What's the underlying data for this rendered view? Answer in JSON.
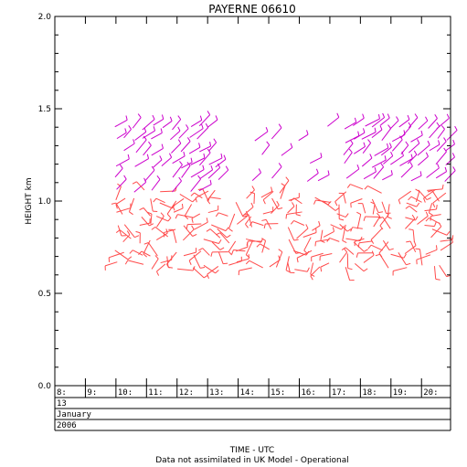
{
  "chart_data": {
    "type": "scatter",
    "title": "PAYERNE 06610",
    "ylabel": "HEIGHT km",
    "xlabel": "TIME - UTC",
    "subtitle": "Data not assimilated in UK Model - Operational",
    "ylim": [
      0.0,
      2.0
    ],
    "yticks": [
      "0.0",
      "0.5",
      "1.0",
      "1.5",
      "2.0"
    ],
    "xlim": [
      8.0,
      20.95
    ],
    "xtick_labels": [
      "8:",
      "9:",
      "10:",
      "11:",
      "12:",
      "13:",
      "14:",
      "15:",
      "16:",
      "17:",
      "18:",
      "19:",
      "20:"
    ],
    "date_rows": [
      "13",
      "January",
      "2006"
    ],
    "series_colors": {
      "lower": "#ff4a4a",
      "upper": "#cc00cc"
    },
    "time_range": [
      10.0,
      20.9
    ],
    "lower_layer_km": [
      0.65,
      1.05
    ],
    "upper_layer_km": [
      1.05,
      1.42
    ]
  }
}
